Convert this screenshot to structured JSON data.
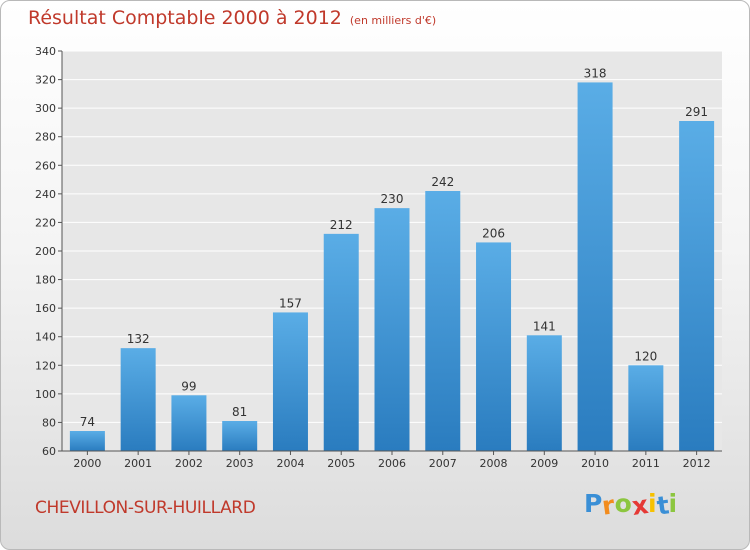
{
  "chart_data": {
    "type": "bar",
    "title": "Résultat Comptable 2000 à 2012",
    "subtitle": "(en milliers d'€)",
    "categories": [
      "2000",
      "2001",
      "2002",
      "2003",
      "2004",
      "2005",
      "2006",
      "2007",
      "2008",
      "2009",
      "2010",
      "2011",
      "2012"
    ],
    "values": [
      74,
      132,
      99,
      81,
      157,
      212,
      230,
      242,
      206,
      141,
      318,
      120,
      291
    ],
    "ylim": [
      60,
      340
    ],
    "yticks": [
      60,
      80,
      100,
      120,
      140,
      160,
      180,
      200,
      220,
      240,
      260,
      280,
      300,
      320,
      340
    ],
    "grid": true,
    "xlabel": "",
    "ylabel": "",
    "bar_color_top": "#5aade6",
    "bar_color_bottom": "#2a7cbf"
  },
  "commune": "CHEVILLON-SUR-HUILLARD",
  "logo": {
    "text": "Proxiti",
    "letters": [
      {
        "ch": "P",
        "color": "#3a8fd6"
      },
      {
        "ch": "r",
        "color": "#f28c1e"
      },
      {
        "ch": "o",
        "color": "#8cc63f"
      },
      {
        "ch": "x",
        "color": "#e53935"
      },
      {
        "ch": "i",
        "color": "#f6c100"
      },
      {
        "ch": "t",
        "color": "#3a8fd6"
      },
      {
        "ch": "i",
        "color": "#8cc63f"
      }
    ]
  }
}
